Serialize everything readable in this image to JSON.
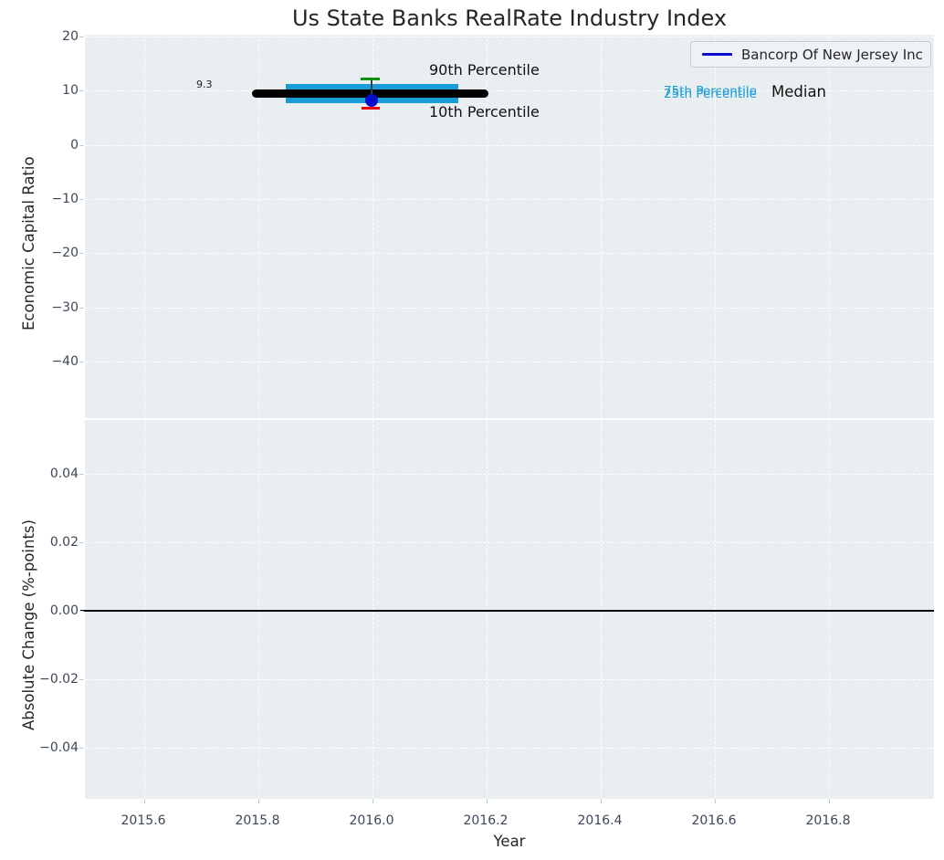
{
  "figure": {
    "title": "Us State Banks RealRate Industry Index",
    "background": "#ffffff",
    "axes_background": "#e9eef1",
    "gridline_color": "#ffffff"
  },
  "legend": {
    "entries": [
      {
        "label": "Bancorp Of New Jersey Inc",
        "marker": "line",
        "color": "#0b0bcd"
      }
    ],
    "position": "upper right"
  },
  "top_plot": {
    "ylabel": "Economic Capital Ratio",
    "yticks": [
      "20",
      "10",
      "0",
      "−10",
      "−20",
      "−30",
      "−40"
    ],
    "annotations": {
      "p90_label": "90th Percentile",
      "p10_label": "10th Percentile",
      "p75_label": "75th Percentile",
      "p25_label": "25th Percentile",
      "median_label": "Median",
      "median_value_label": "9.3"
    },
    "colors": {
      "median_line": "#000000",
      "iqr_band": "#189dd8",
      "p90_cap": "#069106",
      "p10_cap": "#f00000",
      "company_point": "#0b0bcd",
      "percentile_text": "#1a9cd8"
    }
  },
  "bottom_plot": {
    "ylabel": "Absolute Change (%-points)",
    "yticks": [
      "0.04",
      "0.02",
      "0.00",
      "−0.02",
      "−0.04"
    ],
    "zero_line_color": "#000000"
  },
  "xaxis": {
    "label": "Year",
    "ticks": [
      "2015.6",
      "2015.8",
      "2016.0",
      "2016.2",
      "2016.4",
      "2016.6",
      "2016.8"
    ]
  },
  "chart_data": [
    {
      "type": "line",
      "title": "Us State Banks RealRate Industry Index",
      "xlabel": "Year",
      "ylabel": "Economic Capital Ratio",
      "xlim": [
        2015.5,
        2017.0
      ],
      "ylim": [
        -50,
        20
      ],
      "xticks": [
        2015.6,
        2015.8,
        2016.0,
        2016.2,
        2016.4,
        2016.6,
        2016.8
      ],
      "yticks": [
        20,
        10,
        0,
        -10,
        -20,
        -30,
        -40
      ],
      "grid": "white dashed on light-gray background",
      "legend_position": "upper right",
      "legend_entries": [
        "Bancorp Of New Jersey Inc"
      ],
      "series": [
        {
          "name": "Median",
          "type": "thick-line",
          "color": "#000000",
          "x": [
            2015.8,
            2016.2
          ],
          "y": [
            9.3,
            9.3
          ],
          "value_label": "9.3"
        },
        {
          "name": "25th-75th Percentile band",
          "type": "band",
          "color": "#189dd8",
          "x": [
            2015.85,
            2016.15
          ],
          "y25": 9.1,
          "y75": 9.8
        },
        {
          "name": "90th Percentile",
          "type": "errorbar-cap",
          "color": "#069106",
          "x": 2016.0,
          "y": 12.2
        },
        {
          "name": "10th Percentile",
          "type": "errorbar-cap",
          "color": "#f00000",
          "x": 2016.0,
          "y": 6.9
        },
        {
          "name": "Bancorp Of New Jersey Inc",
          "type": "point",
          "color": "#0b0bcd",
          "x": 2016.0,
          "y": 8.2
        }
      ],
      "annotations": [
        "90th Percentile",
        "10th Percentile",
        "75th Percentile",
        "25th Percentile",
        "Median",
        "9.3"
      ]
    },
    {
      "type": "line",
      "xlabel": "Year",
      "ylabel": "Absolute Change (%-points)",
      "xlim": [
        2015.5,
        2017.0
      ],
      "ylim": [
        -0.055,
        0.055
      ],
      "xticks": [
        2015.6,
        2015.8,
        2016.0,
        2016.2,
        2016.4,
        2016.6,
        2016.8
      ],
      "yticks": [
        0.04,
        0.02,
        0.0,
        -0.02,
        -0.04
      ],
      "grid": "white dashed on light-gray background",
      "series": [
        {
          "name": "zero-line",
          "type": "hline",
          "color": "#000000",
          "y": 0.0,
          "x": [
            2015.5,
            2017.0
          ]
        }
      ]
    }
  ]
}
